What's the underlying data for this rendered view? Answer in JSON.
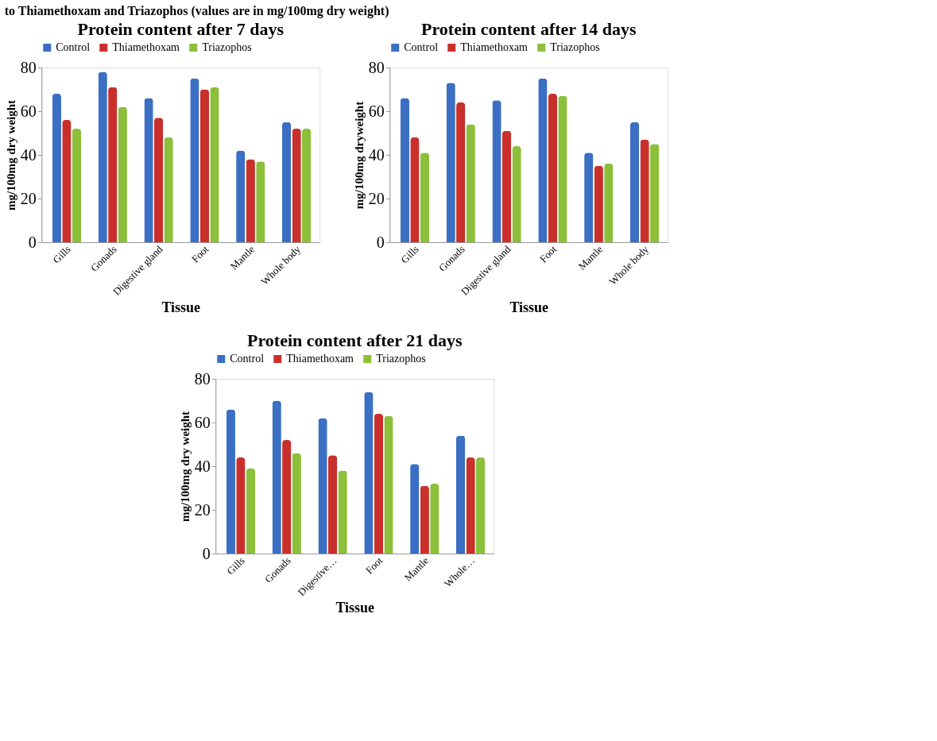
{
  "chart_data": [
    {
      "type": "bar",
      "title": "Protein content after 7 days",
      "xlabel": "Tissue",
      "ylabel": "mg/100mg dry weight",
      "annotations": [
        "to Thiamethoxam and Triazophos (values are in mg/100mg dry weight)"
      ],
      "categories": [
        "Gills",
        "Gonads",
        "Digestive gland",
        "Foot",
        "Mantle",
        "Whole body"
      ],
      "ylim": [
        0,
        80
      ],
      "yticks": [
        0,
        20,
        40,
        60,
        80
      ],
      "grid": false,
      "legend": "top",
      "series": [
        {
          "name": "Control",
          "color": "#3a6fc4",
          "values": [
            68,
            78,
            66,
            75,
            42,
            55
          ]
        },
        {
          "name": "Thiamethoxam",
          "color": "#c9302c",
          "values": [
            56,
            71,
            57,
            70,
            38,
            52
          ]
        },
        {
          "name": "Triazophos",
          "color": "#8cbf3a",
          "values": [
            52,
            62,
            48,
            71,
            37,
            52
          ]
        }
      ]
    },
    {
      "type": "bar",
      "title": "Protein content after 14 days",
      "xlabel": "Tissue",
      "ylabel": "mg/100mg dryweight",
      "categories": [
        "Gills",
        "Gonads",
        "Digestive gland",
        "Foot",
        "Mantle",
        "Whole body"
      ],
      "ylim": [
        0,
        80
      ],
      "yticks": [
        0,
        20,
        40,
        60,
        80
      ],
      "grid": false,
      "legend": "top",
      "series": [
        {
          "name": "Control",
          "color": "#3a6fc4",
          "values": [
            66,
            73,
            65,
            75,
            41,
            55
          ]
        },
        {
          "name": "Thiamethoxam",
          "color": "#c9302c",
          "values": [
            48,
            64,
            51,
            68,
            35,
            47
          ]
        },
        {
          "name": "Triazophos",
          "color": "#8cbf3a",
          "values": [
            41,
            54,
            44,
            67,
            36,
            45
          ]
        }
      ]
    },
    {
      "type": "bar",
      "title": "Protein content after 21 days",
      "xlabel": "Tissue",
      "ylabel": "mg/100mg dry weight",
      "categories": [
        "Gills",
        "Gonads",
        "Digestive…",
        "Foot",
        "Mantle",
        "Whole…"
      ],
      "ylim": [
        0,
        80
      ],
      "yticks": [
        0,
        20,
        40,
        60,
        80
      ],
      "grid": false,
      "legend": "top",
      "series": [
        {
          "name": "Control",
          "color": "#3a6fc4",
          "values": [
            66,
            70,
            62,
            74,
            41,
            54
          ]
        },
        {
          "name": "Thiamethoxam",
          "color": "#c9302c",
          "values": [
            44,
            52,
            45,
            64,
            31,
            44
          ]
        },
        {
          "name": "Triazophos",
          "color": "#8cbf3a",
          "values": [
            39,
            46,
            38,
            63,
            32,
            44
          ]
        }
      ]
    }
  ]
}
